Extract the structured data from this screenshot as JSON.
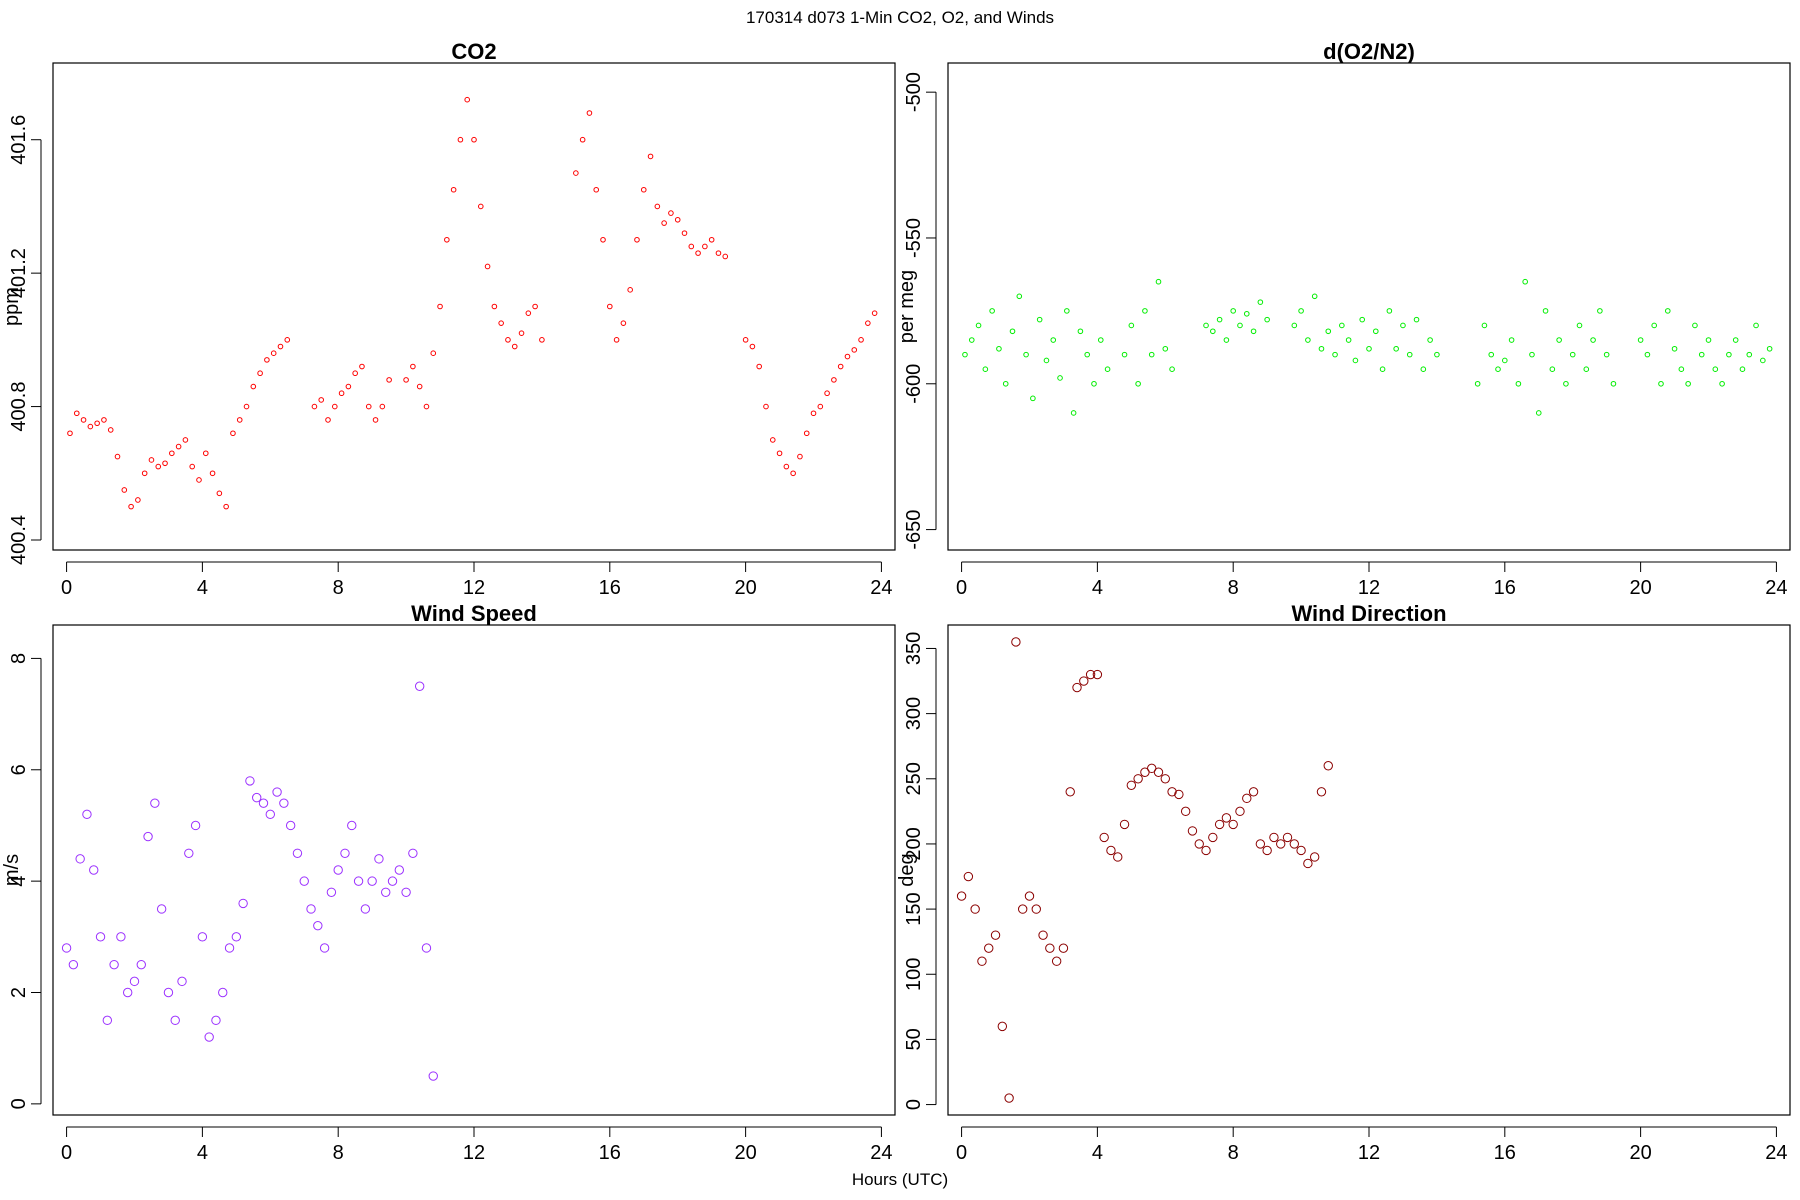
{
  "figure": {
    "title": "170314   d073   1-Min CO2, O2, and Winds",
    "xlabel": "Hours (UTC)"
  },
  "chart_data": [
    {
      "id": "co2",
      "type": "scatter",
      "title": "CO2",
      "xlabel": "",
      "ylabel": "ppm",
      "color": "#ff0000",
      "xlim": [
        -0.4,
        24.4
      ],
      "ylim": [
        400.37,
        401.83
      ],
      "xticks": [
        "0",
        "4",
        "8",
        "12",
        "16",
        "20",
        "24"
      ],
      "yticks": [
        "400.4",
        "400.8",
        "401.2",
        "401.6"
      ],
      "y_rotated_ticks": true,
      "x": [
        0.1,
        0.3,
        0.5,
        0.7,
        0.9,
        1.1,
        1.3,
        1.5,
        1.7,
        1.9,
        2.1,
        2.3,
        2.5,
        2.7,
        2.9,
        3.1,
        3.3,
        3.5,
        3.7,
        3.9,
        4.1,
        4.3,
        4.5,
        4.7,
        4.9,
        5.1,
        5.3,
        5.5,
        5.7,
        5.9,
        6.1,
        6.3,
        6.5,
        7.3,
        7.5,
        7.7,
        7.9,
        8.1,
        8.3,
        8.5,
        8.7,
        8.9,
        9.1,
        9.3,
        9.5,
        10.0,
        10.2,
        10.4,
        10.6,
        10.8,
        11.0,
        11.2,
        11.4,
        11.6,
        11.8,
        12.0,
        12.2,
        12.4,
        12.6,
        12.8,
        13.0,
        13.2,
        13.4,
        13.6,
        13.8,
        14.0,
        15.0,
        15.2,
        15.4,
        15.6,
        15.8,
        16.0,
        16.2,
        16.4,
        16.6,
        16.8,
        17.0,
        17.2,
        17.4,
        17.6,
        17.8,
        18.0,
        18.2,
        18.4,
        18.6,
        18.8,
        19.0,
        19.2,
        19.4,
        20.0,
        20.2,
        20.4,
        20.6,
        20.8,
        21.0,
        21.2,
        21.4,
        21.6,
        21.8,
        22.0,
        22.2,
        22.4,
        22.6,
        22.8,
        23.0,
        23.2,
        23.4,
        23.6,
        23.8
      ],
      "y": [
        400.72,
        400.78,
        400.76,
        400.74,
        400.75,
        400.76,
        400.73,
        400.65,
        400.55,
        400.5,
        400.52,
        400.6,
        400.64,
        400.62,
        400.63,
        400.66,
        400.68,
        400.7,
        400.62,
        400.58,
        400.66,
        400.6,
        400.54,
        400.5,
        400.72,
        400.76,
        400.8,
        400.86,
        400.9,
        400.94,
        400.96,
        400.98,
        401.0,
        400.8,
        400.82,
        400.76,
        400.8,
        400.84,
        400.86,
        400.9,
        400.92,
        400.8,
        400.76,
        400.8,
        400.88,
        400.88,
        400.92,
        400.86,
        400.8,
        400.96,
        401.1,
        401.3,
        401.45,
        401.6,
        401.72,
        401.6,
        401.4,
        401.22,
        401.1,
        401.05,
        401.0,
        400.98,
        401.02,
        401.08,
        401.1,
        401.0,
        401.5,
        401.6,
        401.68,
        401.45,
        401.3,
        401.1,
        401.0,
        401.05,
        401.15,
        401.3,
        401.45,
        401.55,
        401.4,
        401.35,
        401.38,
        401.36,
        401.32,
        401.28,
        401.26,
        401.28,
        401.3,
        401.26,
        401.25,
        401.0,
        400.98,
        400.92,
        400.8,
        400.7,
        400.66,
        400.62,
        400.6,
        400.65,
        400.72,
        400.78,
        400.8,
        400.84,
        400.88,
        400.92,
        400.95,
        400.97,
        401.0,
        401.05,
        401.08
      ]
    },
    {
      "id": "o2",
      "type": "scatter",
      "title": "d(O2/N2)",
      "xlabel": "",
      "ylabel": "per meg",
      "color": "#00ee00",
      "xlim": [
        -0.4,
        24.4
      ],
      "ylim": [
        -657,
        -490
      ],
      "xticks": [
        "0",
        "4",
        "8",
        "12",
        "16",
        "20",
        "24"
      ],
      "yticks": [
        "-650",
        "-600",
        "-550",
        "-500"
      ],
      "y_rotated_ticks": true,
      "x": [
        0.1,
        0.3,
        0.5,
        0.7,
        0.9,
        1.1,
        1.3,
        1.5,
        1.7,
        1.9,
        2.1,
        2.3,
        2.5,
        2.7,
        2.9,
        3.1,
        3.3,
        3.5,
        3.7,
        3.9,
        4.1,
        4.3,
        4.8,
        5.0,
        5.2,
        5.4,
        5.6,
        5.8,
        6.0,
        6.2,
        7.2,
        7.4,
        7.6,
        7.8,
        8.0,
        8.2,
        8.4,
        8.6,
        8.8,
        9.0,
        9.8,
        10.0,
        10.2,
        10.4,
        10.6,
        10.8,
        11.0,
        11.2,
        11.4,
        11.6,
        11.8,
        12.0,
        12.2,
        12.4,
        12.6,
        12.8,
        13.0,
        13.2,
        13.4,
        13.6,
        13.8,
        14.0,
        15.2,
        15.4,
        15.6,
        15.8,
        16.0,
        16.2,
        16.4,
        16.6,
        16.8,
        17.0,
        17.2,
        17.4,
        17.6,
        17.8,
        18.0,
        18.2,
        18.4,
        18.6,
        18.8,
        19.0,
        19.2,
        20.0,
        20.2,
        20.4,
        20.6,
        20.8,
        21.0,
        21.2,
        21.4,
        21.6,
        21.8,
        22.0,
        22.2,
        22.4,
        22.6,
        22.8,
        23.0,
        23.2,
        23.4,
        23.6,
        23.8
      ],
      "y": [
        -590,
        -585,
        -580,
        -595,
        -575,
        -588,
        -600,
        -582,
        -570,
        -590,
        -605,
        -578,
        -592,
        -585,
        -598,
        -575,
        -610,
        -582,
        -590,
        -600,
        -585,
        -595,
        -590,
        -580,
        -600,
        -575,
        -590,
        -565,
        -588,
        -595,
        -580,
        -582,
        -578,
        -585,
        -575,
        -580,
        -576,
        -582,
        -572,
        -578,
        -580,
        -575,
        -585,
        -570,
        -588,
        -582,
        -590,
        -580,
        -585,
        -592,
        -578,
        -588,
        -582,
        -595,
        -575,
        -588,
        -580,
        -590,
        -578,
        -595,
        -585,
        -590,
        -600,
        -580,
        -590,
        -595,
        -592,
        -585,
        -600,
        -565,
        -590,
        -610,
        -575,
        -595,
        -585,
        -600,
        -590,
        -580,
        -595,
        -585,
        -575,
        -590,
        -600,
        -585,
        -590,
        -580,
        -600,
        -575,
        -588,
        -595,
        -600,
        -580,
        -590,
        -585,
        -595,
        -600,
        -590,
        -585,
        -595,
        -590,
        -580,
        -592,
        -588
      ]
    },
    {
      "id": "wind-speed",
      "type": "scatter",
      "title": "Wind Speed",
      "xlabel": "",
      "ylabel": "m/s",
      "color": "#9b30ff",
      "xlim": [
        -0.4,
        24.4
      ],
      "ylim": [
        -0.2,
        8.6
      ],
      "xticks": [
        "0",
        "4",
        "8",
        "12",
        "16",
        "20",
        "24"
      ],
      "yticks": [
        "0",
        "2",
        "4",
        "6",
        "8"
      ],
      "y_rotated_ticks": true,
      "x": [
        0.0,
        0.2,
        0.4,
        0.6,
        0.8,
        1.0,
        1.2,
        1.4,
        1.6,
        1.8,
        2.0,
        2.2,
        2.4,
        2.6,
        2.8,
        3.0,
        3.2,
        3.4,
        3.6,
        3.8,
        4.0,
        4.2,
        4.4,
        4.6,
        4.8,
        5.0,
        5.2,
        5.4,
        5.6,
        5.8,
        6.0,
        6.2,
        6.4,
        6.6,
        6.8,
        7.0,
        7.2,
        7.4,
        7.6,
        7.8,
        8.0,
        8.2,
        8.4,
        8.6,
        8.8,
        9.0,
        9.2,
        9.4,
        9.6,
        9.8,
        10.0,
        10.2,
        10.4,
        10.6,
        10.8
      ],
      "y": [
        2.8,
        2.5,
        4.4,
        5.2,
        4.2,
        3.0,
        1.5,
        2.5,
        3.0,
        2.0,
        2.2,
        2.5,
        4.8,
        5.4,
        3.5,
        2.0,
        1.5,
        2.2,
        4.5,
        5.0,
        3.0,
        1.2,
        1.5,
        2.0,
        2.8,
        3.0,
        3.6,
        5.8,
        5.5,
        5.4,
        5.2,
        5.6,
        5.4,
        5.0,
        4.5,
        4.0,
        3.5,
        3.2,
        2.8,
        3.8,
        4.2,
        4.5,
        5.0,
        4.0,
        3.5,
        4.0,
        4.4,
        3.8,
        4.0,
        4.2,
        3.8,
        4.5,
        7.5,
        2.8,
        0.5
      ]
    },
    {
      "id": "wind-direction",
      "type": "scatter",
      "title": "Wind Direction",
      "xlabel": "",
      "ylabel": "deg",
      "color": "#8b0000",
      "xlim": [
        -0.4,
        24.4
      ],
      "ylim": [
        -8,
        368
      ],
      "xticks": [
        "0",
        "4",
        "8",
        "12",
        "16",
        "20",
        "24"
      ],
      "yticks": [
        "0",
        "50",
        "100",
        "150",
        "200",
        "250",
        "300",
        "350"
      ],
      "y_rotated_ticks": false,
      "x": [
        0.0,
        0.2,
        0.4,
        0.6,
        0.8,
        1.0,
        1.2,
        1.4,
        1.6,
        1.8,
        2.0,
        2.2,
        2.4,
        2.6,
        2.8,
        3.0,
        3.2,
        3.4,
        3.6,
        3.8,
        4.0,
        4.2,
        4.4,
        4.6,
        4.8,
        5.0,
        5.2,
        5.4,
        5.6,
        5.8,
        6.0,
        6.2,
        6.4,
        6.6,
        6.8,
        7.0,
        7.2,
        7.4,
        7.6,
        7.8,
        8.0,
        8.2,
        8.4,
        8.6,
        8.8,
        9.0,
        9.2,
        9.4,
        9.6,
        9.8,
        10.0,
        10.2,
        10.4,
        10.6,
        10.8
      ],
      "y": [
        160,
        175,
        150,
        110,
        120,
        130,
        60,
        5,
        355,
        150,
        160,
        150,
        130,
        120,
        110,
        120,
        240,
        320,
        325,
        330,
        330,
        205,
        195,
        190,
        215,
        245,
        250,
        255,
        258,
        255,
        250,
        240,
        238,
        225,
        210,
        200,
        195,
        205,
        215,
        220,
        215,
        225,
        235,
        240,
        200,
        195,
        205,
        200,
        205,
        200,
        195,
        185,
        190,
        240,
        260
      ]
    }
  ]
}
